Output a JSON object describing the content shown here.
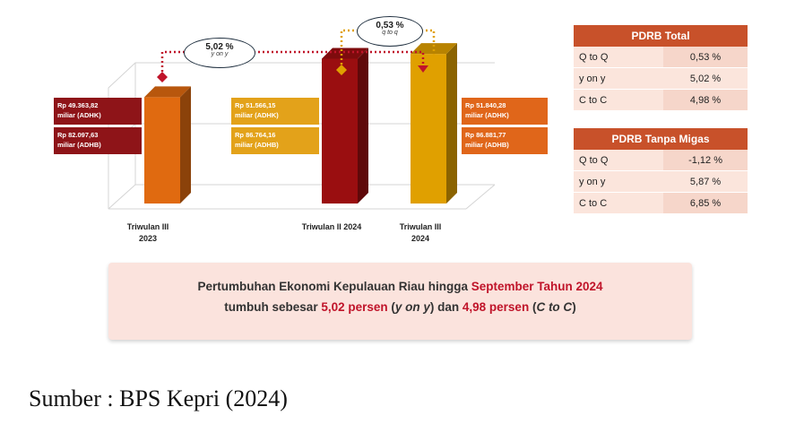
{
  "chart_data": {
    "type": "bar",
    "categories": [
      "Triwulan III 2023",
      "Triwulan II 2024",
      "Triwulan III 2024"
    ],
    "series": [
      {
        "name": "ADHK",
        "values": [
          49363.82,
          51566.15,
          51840.28
        ]
      },
      {
        "name": "ADHB",
        "values": [
          82097.63,
          86764.16,
          86881.77
        ]
      }
    ],
    "bar_colors": [
      "#e06a10",
      "#9a0e10",
      "#e0a000"
    ],
    "label_colors": [
      "#8e1418",
      "#e3a21a",
      "#e0661a"
    ],
    "labels": [
      {
        "adhk": "Rp 49.363,82",
        "adhk_unit": "miliar (ADHK)",
        "adhb": "Rp 82.097,63",
        "adhb_unit": "miliar (ADHB)"
      },
      {
        "adhk": "Rp 51.566,15",
        "adhk_unit": "miliar (ADHK)",
        "adhb": "Rp 86.764,16",
        "adhb_unit": "miliar (ADHB)"
      },
      {
        "adhk": "Rp 51.840,28",
        "adhk_unit": "miliar (ADHK)",
        "adhb": "Rp 86.881,77",
        "adhb_unit": "miliar (ADHB)"
      }
    ],
    "category_lines": [
      [
        "Triwulan III",
        "2023"
      ],
      [
        "Triwulan II 2024"
      ],
      [
        "Triwulan III",
        "2024"
      ]
    ],
    "annotations": [
      {
        "value": "5,02 %",
        "sub": "y on y"
      },
      {
        "value": "0,53 %",
        "sub": "q to q"
      }
    ]
  },
  "tables": [
    {
      "title": "PDRB Total",
      "rows": [
        [
          "Q to Q",
          "0,53 %"
        ],
        [
          "y on y",
          "5,02 %"
        ],
        [
          "C to C",
          "4,98 %"
        ]
      ]
    },
    {
      "title": "PDRB Tanpa Migas",
      "rows": [
        [
          "Q to Q",
          "-1,12 %"
        ],
        [
          "y on y",
          "5,87 %"
        ],
        [
          "C to C",
          "6,85 %"
        ]
      ]
    }
  ],
  "summary": {
    "l1_a": "Pertumbuhan Ekonomi Kepulauan Riau hingga ",
    "l1_b": "September Tahun 2024",
    "l2_a": "tumbuh sebesar ",
    "l2_b": "5,02 persen",
    "l2_c": " (",
    "l2_d": "y on y",
    "l2_e": ") dan ",
    "l2_f": "4,98 persen",
    "l2_g": " (",
    "l2_h": "C to C",
    "l2_i": ")"
  },
  "source": "Sumber : BPS Kepri (2024)"
}
